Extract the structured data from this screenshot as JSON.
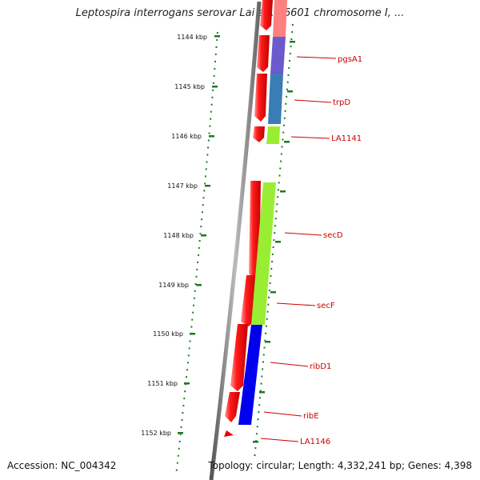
{
  "title": "Leptospira interrogans serovar Lai str. 56601 chromosome I, ...",
  "footer": {
    "accession": "Accession: NC_004342",
    "summary": "Topology: circular; Length: 4,332,241 bp; Genes: 4,398"
  },
  "kbp_labels": [
    "1144 kbp",
    "1145 kbp",
    "1146 kbp",
    "1147 kbp",
    "1148 kbp",
    "1149 kbp",
    "1150 kbp",
    "1151 kbp",
    "1152 kbp"
  ],
  "gene_labels": [
    "pgsA1",
    "trpD",
    "LA1141",
    "secD",
    "secF",
    "ribD1",
    "ribE",
    "LA1146"
  ],
  "colors": {
    "strand_arrow": "#ee0000",
    "label": "#cc0000",
    "tick": "#1f7a1f",
    "backbone": "#888888",
    "pgsA1": "#6a5acd",
    "trpD": "#3a7db5",
    "LA1141": "#99ee33",
    "secD": "#99ee33",
    "secF": "#99ee33",
    "ribD1": "#0000ee",
    "ribE": "#0000ee"
  }
}
